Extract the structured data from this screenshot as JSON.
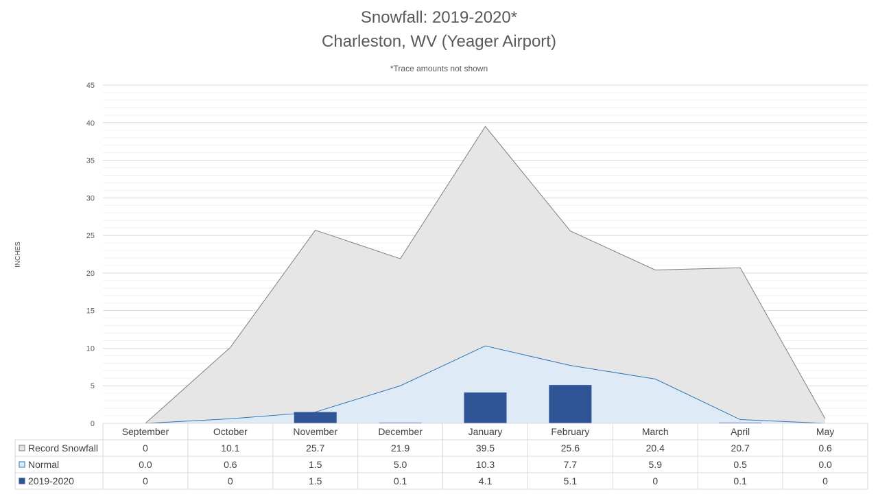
{
  "chart_data": {
    "type": "area",
    "title": "Snowfall: 2019-2020*",
    "subtitle": "Charleston, WV (Yeager Airport)",
    "note": "*Trace amounts not shown",
    "ylabel": "INCHES",
    "ylim": [
      0,
      45
    ],
    "yticks": [
      0,
      5,
      10,
      15,
      20,
      25,
      30,
      35,
      40,
      45
    ],
    "grid": true,
    "legend": "data-table",
    "categories": [
      "September",
      "October",
      "November",
      "December",
      "January",
      "February",
      "March",
      "April",
      "May"
    ],
    "series": [
      {
        "name": "Record Snowfall",
        "type": "area",
        "color": "#e7e6e6",
        "stroke": "#7f7f7f",
        "values": [
          0,
          10.1,
          25.7,
          21.9,
          39.5,
          25.6,
          20.4,
          20.7,
          0.6
        ],
        "labels": [
          "0",
          "10.1",
          "25.7",
          "21.9",
          "39.5",
          "25.6",
          "20.4",
          "20.7",
          "0.6"
        ]
      },
      {
        "name": "Normal",
        "type": "area",
        "color": "#deebf7",
        "stroke": "#2e75b6",
        "values": [
          0.0,
          0.6,
          1.5,
          5.0,
          10.3,
          7.7,
          5.9,
          0.5,
          0.0
        ],
        "labels": [
          "0.0",
          "0.6",
          "1.5",
          "5.0",
          "10.3",
          "7.7",
          "5.9",
          "0.5",
          "0.0"
        ]
      },
      {
        "name": "2019-2020",
        "type": "bar",
        "color": "#2f5597",
        "stroke": "#2f5597",
        "values": [
          0,
          0,
          1.5,
          0.1,
          4.1,
          5.1,
          0,
          0.1,
          0
        ],
        "labels": [
          "0",
          "0",
          "1.5",
          "0.1",
          "4.1",
          "5.1",
          "0",
          "0.1",
          "0"
        ]
      }
    ]
  }
}
